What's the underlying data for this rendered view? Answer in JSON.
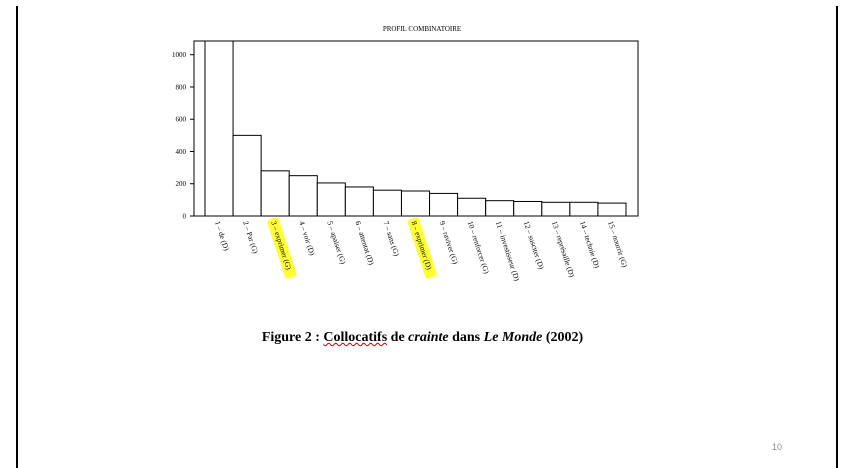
{
  "chart_data": {
    "type": "bar",
    "title": "PROFIL COMBINATOIRE",
    "xlabel": "",
    "ylabel": "",
    "categories": [
      "1 – de (D)",
      "2 – Par (G)",
      "3 – exprimer (G)",
      "4 – voir (D)",
      "5 – apaiser (G)",
      "6 – attentat (D)",
      "7 – sans (G)",
      "8 – exprimer (D)",
      "9 – raviver (G)",
      "10 – renforcer (G)",
      "11 – investisseur (D)",
      "12 – susciter (D)",
      "13 – représaille (D)",
      "14 – tech­nie (D)",
      "15 – nourrir (G)"
    ],
    "values": [
      1085,
      500,
      280,
      250,
      205,
      180,
      160,
      155,
      140,
      110,
      95,
      90,
      85,
      85,
      80
    ],
    "highlighted": [
      "3 – exprimer (G)",
      "8 – exprimer (D)"
    ],
    "highlight_color": "#ffff33",
    "yticks": [
      0,
      200,
      400,
      600,
      800,
      1000
    ],
    "ylim": [
      0,
      1085
    ],
    "grid": false,
    "bar_fill": "#ffffff",
    "bar_stroke": "#000000"
  },
  "caption": {
    "prefix": "Figure 2 : ",
    "collocatifs": "Collocatifs",
    "de": " de ",
    "crainte": "crainte",
    "dans": " dans ",
    "le_monde": "Le Monde",
    "year": " (2002)"
  },
  "page_number": "10"
}
